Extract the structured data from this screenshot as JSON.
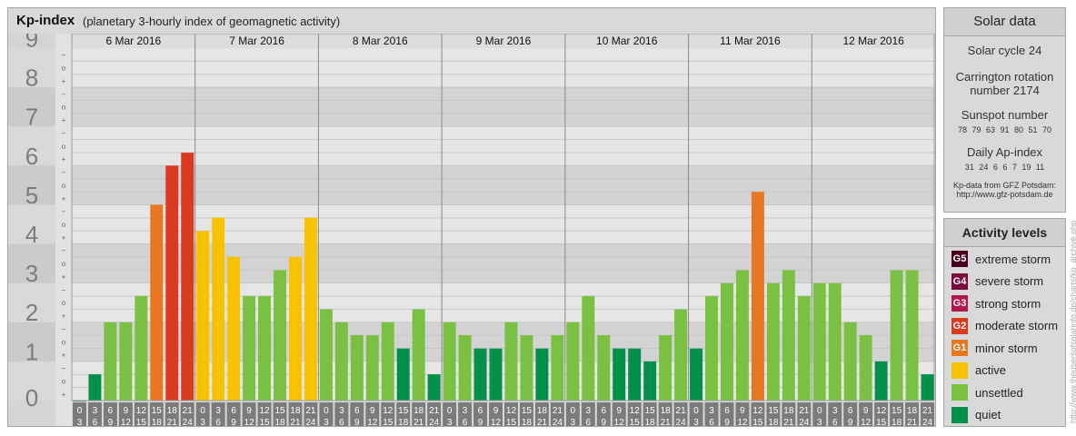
{
  "header": {
    "title": "Kp-index",
    "subtitle": "(planetary 3-hourly index of geomagnetic activity)"
  },
  "chart_data": {
    "type": "bar",
    "ylim": [
      0,
      9
    ],
    "y_ticks": [
      "0",
      "1",
      "2",
      "3",
      "4",
      "5",
      "6",
      "7",
      "8",
      "9"
    ],
    "sub_ticks": [
      "+",
      "o",
      "−"
    ],
    "days": [
      "6 Mar 2016",
      "7 Mar 2016",
      "8 Mar 2016",
      "9 Mar 2016",
      "10 Mar 2016",
      "11 Mar 2016",
      "12 Mar 2016"
    ],
    "hour_starts": [
      "0",
      "3",
      "6",
      "9",
      "12",
      "15",
      "18",
      "21"
    ],
    "hour_ends": [
      "3",
      "6",
      "9",
      "12",
      "15",
      "18",
      "21",
      "24"
    ],
    "values": [
      [
        0.0,
        0.67,
        2.0,
        2.0,
        2.67,
        5.0,
        6.0,
        6.33
      ],
      [
        4.33,
        4.67,
        3.67,
        2.67,
        2.67,
        3.33,
        3.67,
        4.67
      ],
      [
        2.33,
        2.0,
        1.67,
        1.67,
        2.0,
        1.33,
        2.33,
        0.67
      ],
      [
        2.0,
        1.67,
        1.33,
        1.33,
        2.0,
        1.67,
        1.33,
        1.67
      ],
      [
        2.0,
        2.67,
        1.67,
        1.33,
        1.33,
        1.0,
        1.67,
        2.33
      ],
      [
        1.33,
        2.67,
        3.0,
        3.33,
        5.33,
        3.0,
        3.33,
        2.67
      ],
      [
        3.0,
        3.0,
        2.0,
        1.67,
        1.0,
        3.33,
        3.33,
        0.67
      ]
    ],
    "grid": true
  },
  "colors": {
    "quiet": "#00904a",
    "unsettled": "#7ac143",
    "active": "#f9c200",
    "g1": "#e87722",
    "g2": "#d93a20",
    "g3": "#b5164a",
    "g4": "#7a0b3c",
    "g5": "#4a0020"
  },
  "solar": {
    "title": "Solar data",
    "cycle": "Solar cycle 24",
    "rotation_1": "Carrington rotation",
    "rotation_2": "number 2174",
    "sunspot_title": "Sunspot number",
    "sunspot_values": "78  79  63  91  80  51  70",
    "ap_title": "Daily Ap-index",
    "ap_values": "31  24  6  6  7  19  11",
    "source_1": "Kp-data from GFZ Potsdam:",
    "source_2": "http://www.gfz-potsdam.de"
  },
  "activity": {
    "title": "Activity levels",
    "levels": [
      {
        "badge": "G5",
        "label": "extreme storm",
        "color": "#4a0020"
      },
      {
        "badge": "G4",
        "label": "severe storm",
        "color": "#7a0b3c"
      },
      {
        "badge": "G3",
        "label": "strong storm",
        "color": "#b5164a"
      },
      {
        "badge": "G2",
        "label": "moderate storm",
        "color": "#d93a20"
      },
      {
        "badge": "G1",
        "label": "minor storm",
        "color": "#e87722"
      },
      {
        "badge": "",
        "label": "active",
        "color": "#f9c200"
      },
      {
        "badge": "",
        "label": "unsettled",
        "color": "#7ac143"
      },
      {
        "badge": "",
        "label": "quiet",
        "color": "#00904a"
      }
    ]
  },
  "watermark": "http://www.theusersofsolarinfo.de/charts/kp_archive.php"
}
